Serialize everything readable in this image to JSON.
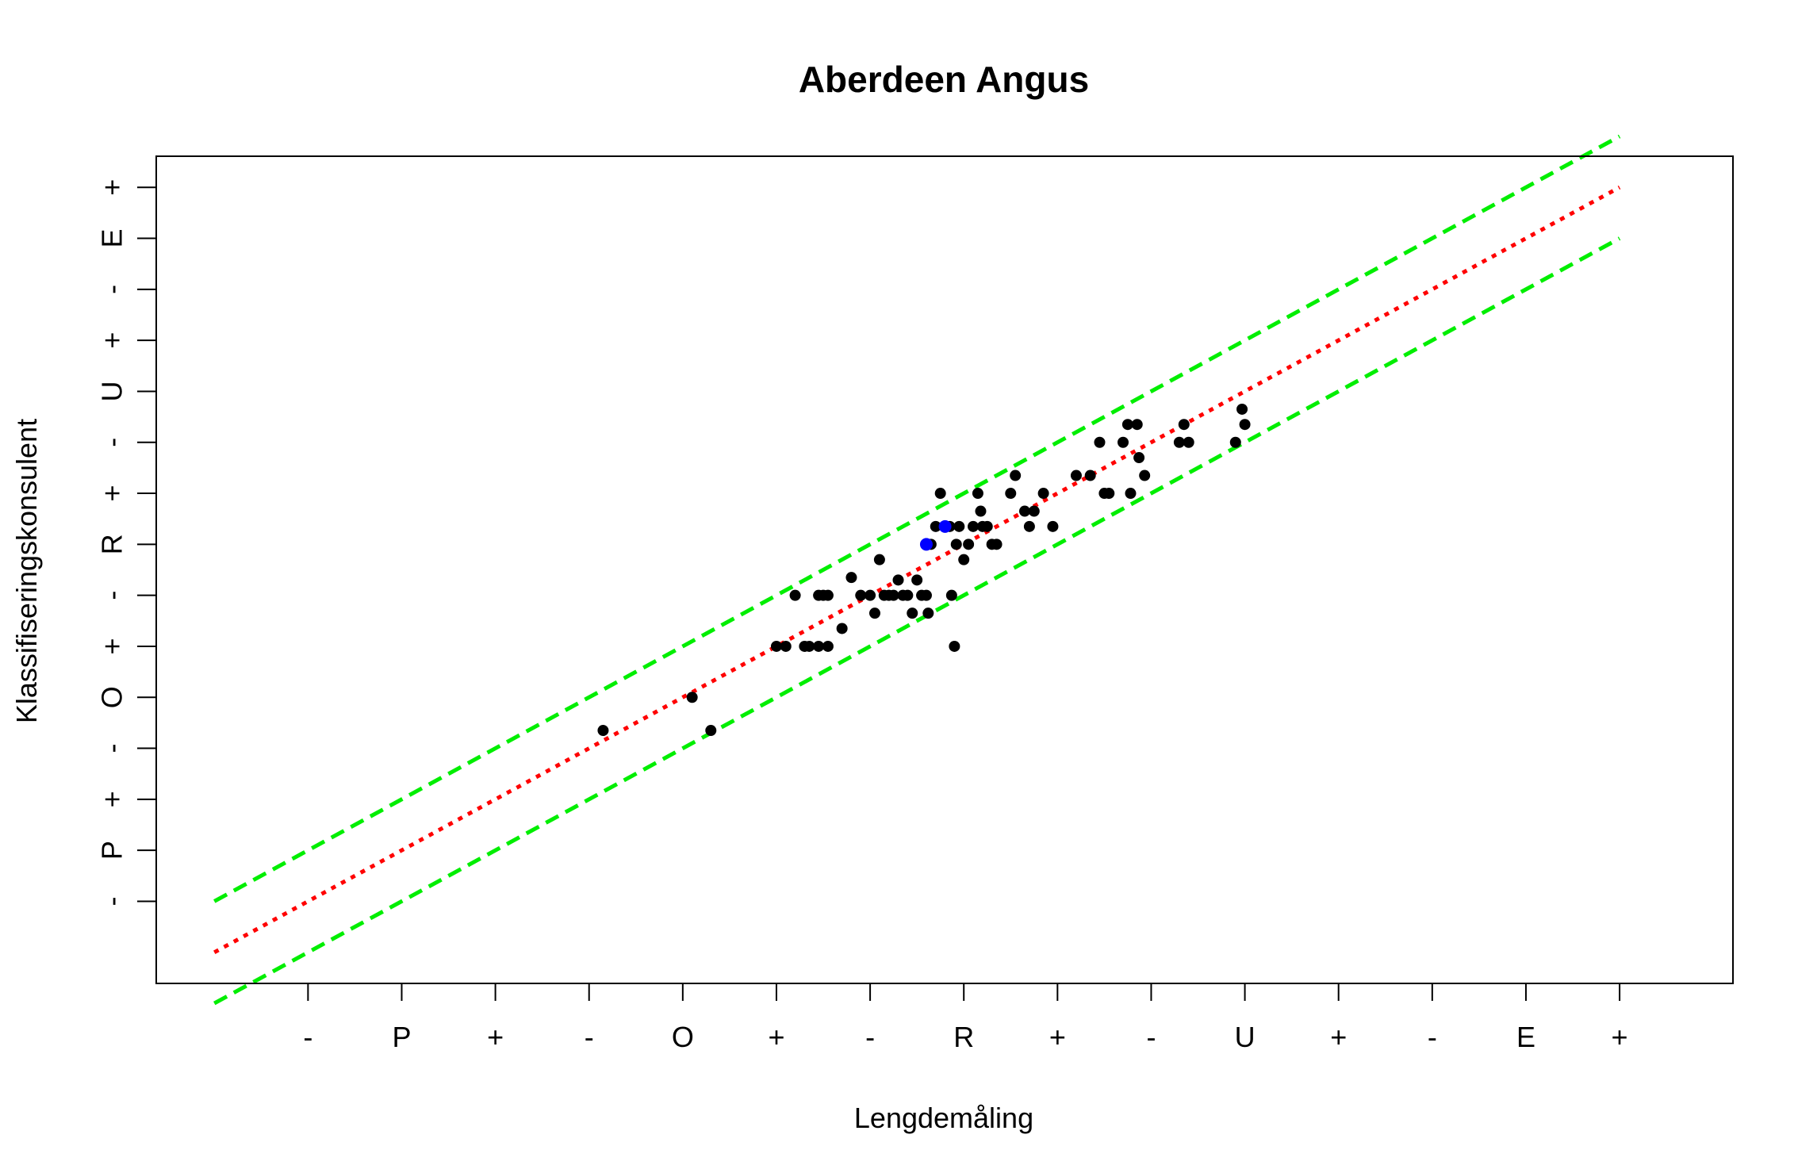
{
  "chart_data": {
    "type": "scatter",
    "title": "Aberdeen Angus",
    "xlabel": "Lengdemåling",
    "ylabel": "Klassifiseringskonsulent",
    "x_ticks": {
      "values": [
        1,
        2,
        3,
        4,
        5,
        6,
        7,
        8,
        9,
        10,
        11,
        12,
        13,
        14,
        15
      ],
      "labels": [
        "-",
        "P",
        "+",
        "-",
        "O",
        "+",
        "-",
        "R",
        "+",
        "-",
        "U",
        "+",
        "-",
        "E",
        "+"
      ]
    },
    "y_ticks": {
      "values": [
        1,
        2,
        3,
        4,
        5,
        6,
        7,
        8,
        9,
        10,
        11,
        12,
        13,
        14,
        15
      ],
      "labels": [
        "-",
        "P",
        "+",
        "-",
        "O",
        "+",
        "-",
        "R",
        "+",
        "-",
        "U",
        "+",
        "-",
        "E",
        "+"
      ]
    },
    "xlim": [
      -0.62,
      16.21
    ],
    "ylim": [
      -0.61,
      15.61
    ],
    "grid": false,
    "reference_lines": [
      {
        "kind": "identity",
        "offset": 0,
        "color": "#ff0000",
        "style": "dotted"
      },
      {
        "kind": "upper-band",
        "offset": 1,
        "color": "#00ee00",
        "style": "dashed"
      },
      {
        "kind": "lower-band",
        "offset": -1,
        "color": "#00ee00",
        "style": "dashed"
      }
    ],
    "x_range_lines": [
      0,
      15
    ],
    "series": [
      {
        "color": "#000000",
        "points": [
          [
            4.15,
            4.35
          ],
          [
            5.1,
            5.0
          ],
          [
            5.3,
            4.35
          ],
          [
            6.0,
            6.0
          ],
          [
            6.1,
            6.0
          ],
          [
            6.3,
            6.0
          ],
          [
            6.35,
            6.0
          ],
          [
            6.45,
            6.0
          ],
          [
            6.55,
            6.0
          ],
          [
            6.2,
            7.0
          ],
          [
            6.45,
            7.0
          ],
          [
            6.5,
            7.0
          ],
          [
            6.55,
            7.0
          ],
          [
            6.7,
            6.35
          ],
          [
            6.8,
            7.35
          ],
          [
            6.9,
            7.0
          ],
          [
            7.0,
            7.0
          ],
          [
            7.05,
            6.65
          ],
          [
            7.1,
            7.7
          ],
          [
            7.15,
            7.0
          ],
          [
            7.2,
            7.0
          ],
          [
            7.25,
            7.0
          ],
          [
            7.3,
            7.3
          ],
          [
            7.35,
            7.0
          ],
          [
            7.4,
            7.0
          ],
          [
            7.45,
            6.65
          ],
          [
            7.5,
            7.3
          ],
          [
            7.55,
            7.0
          ],
          [
            7.6,
            7.0
          ],
          [
            7.62,
            6.65
          ],
          [
            7.65,
            8.0
          ],
          [
            7.7,
            8.35
          ],
          [
            7.75,
            9.0
          ],
          [
            7.85,
            8.35
          ],
          [
            7.87,
            7.0
          ],
          [
            7.9,
            6.0
          ],
          [
            7.92,
            8.0
          ],
          [
            7.95,
            8.35
          ],
          [
            8.0,
            7.7
          ],
          [
            8.05,
            8.0
          ],
          [
            8.1,
            8.35
          ],
          [
            8.15,
            9.0
          ],
          [
            8.18,
            8.65
          ],
          [
            8.2,
            8.35
          ],
          [
            8.25,
            8.35
          ],
          [
            8.3,
            8.0
          ],
          [
            8.35,
            8.0
          ],
          [
            8.5,
            9.0
          ],
          [
            8.55,
            9.35
          ],
          [
            8.65,
            8.65
          ],
          [
            8.7,
            8.35
          ],
          [
            8.75,
            8.65
          ],
          [
            8.85,
            9.0
          ],
          [
            8.95,
            8.35
          ],
          [
            9.2,
            9.35
          ],
          [
            9.35,
            9.35
          ],
          [
            9.45,
            10.0
          ],
          [
            9.5,
            9.0
          ],
          [
            9.55,
            9.0
          ],
          [
            9.7,
            10.0
          ],
          [
            9.75,
            10.35
          ],
          [
            9.78,
            9.0
          ],
          [
            9.85,
            10.35
          ],
          [
            9.87,
            9.7
          ],
          [
            9.93,
            9.35
          ],
          [
            10.3,
            10.0
          ],
          [
            10.35,
            10.35
          ],
          [
            10.4,
            10.0
          ],
          [
            10.9,
            10.0
          ],
          [
            10.97,
            10.65
          ],
          [
            11.0,
            10.35
          ]
        ]
      },
      {
        "color": "#0000ff",
        "points": [
          [
            7.6,
            8.0
          ],
          [
            7.8,
            8.35
          ]
        ]
      }
    ]
  }
}
